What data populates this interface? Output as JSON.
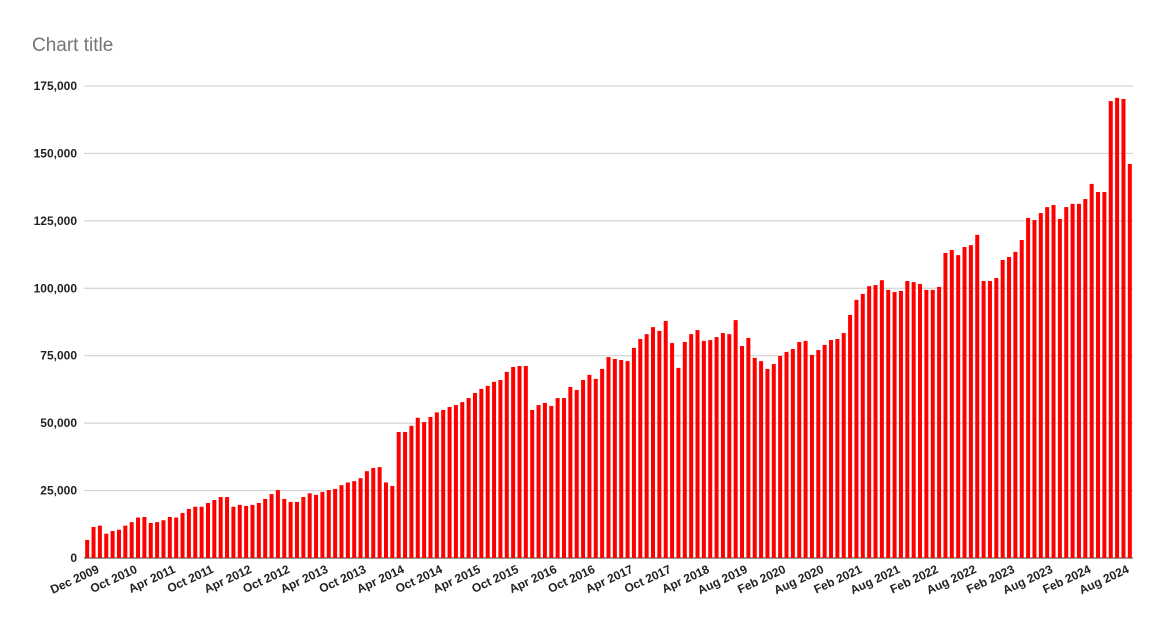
{
  "chart_data": {
    "type": "bar",
    "title": "Chart title",
    "color": "#ff0000",
    "grid": true,
    "ylim": [
      0,
      175000
    ],
    "yticks": [
      0,
      {
        "value": 25000,
        "label": "25,000"
      },
      {
        "value": 50000,
        "label": "50,000"
      },
      {
        "value": 75000,
        "label": "75,000"
      },
      {
        "value": 100000,
        "label": "100,000"
      },
      {
        "value": 125000,
        "label": "125,000"
      },
      {
        "value": 150000,
        "label": "150,000"
      },
      {
        "value": 175000,
        "label": "175,000"
      }
    ],
    "categories": [
      null,
      null,
      "Dec 2009",
      null,
      null,
      null,
      null,
      null,
      "Oct 2010",
      null,
      null,
      null,
      null,
      null,
      "Apr 2011",
      null,
      null,
      null,
      null,
      null,
      "Oct 2011",
      null,
      null,
      null,
      null,
      null,
      "Apr 2012",
      null,
      null,
      null,
      null,
      null,
      "Oct 2012",
      null,
      null,
      null,
      null,
      null,
      "Apr 2013",
      null,
      null,
      null,
      null,
      null,
      "Oct 2013",
      null,
      null,
      null,
      null,
      null,
      "Apr 2014",
      null,
      null,
      null,
      null,
      null,
      "Oct 2014",
      null,
      null,
      null,
      null,
      null,
      "Apr 2015",
      null,
      null,
      null,
      null,
      null,
      "Oct 2015",
      null,
      null,
      null,
      null,
      null,
      "Apr 2016",
      null,
      null,
      null,
      null,
      null,
      "Oct 2016",
      null,
      null,
      null,
      null,
      null,
      "Apr 2017",
      null,
      null,
      null,
      null,
      null,
      "Oct 2017",
      null,
      null,
      null,
      null,
      null,
      "Apr 2018",
      null,
      null,
      null,
      null,
      null,
      "Aug 2019",
      null,
      null,
      null,
      null,
      null,
      "Feb 2020",
      null,
      null,
      null,
      null,
      null,
      "Aug 2020",
      null,
      null,
      null,
      null,
      null,
      "Feb 2021",
      null,
      null,
      null,
      null,
      null,
      "Aug 2021",
      null,
      null,
      null,
      null,
      null,
      "Feb 2022",
      null,
      null,
      null,
      null,
      null,
      "Aug 2022",
      null,
      null,
      null,
      null,
      null,
      "Feb 2023",
      null,
      null,
      null,
      null,
      null,
      "Aug 2023",
      null,
      null,
      null,
      null,
      null,
      "Feb 2024",
      null,
      null,
      null,
      null,
      null,
      "Aug 2024"
    ],
    "values": [
      6700,
      11500,
      12000,
      9000,
      10000,
      10500,
      12000,
      13300,
      15000,
      15200,
      13000,
      13300,
      14000,
      15200,
      15000,
      16700,
      18200,
      19000,
      19000,
      20400,
      21500,
      22600,
      22600,
      19000,
      19700,
      19300,
      19700,
      20400,
      21900,
      23700,
      25200,
      21900,
      20800,
      20800,
      22600,
      24000,
      23400,
      24500,
      25200,
      25600,
      27000,
      28000,
      28500,
      29600,
      32200,
      33400,
      33700,
      28000,
      26700,
      46700,
      46700,
      49000,
      52000,
      50400,
      52300,
      54000,
      54900,
      56000,
      56700,
      57800,
      59300,
      61200,
      62700,
      63800,
      65300,
      66000,
      69000,
      70800,
      71200,
      71200,
      54900,
      56700,
      57500,
      56400,
      59300,
      59300,
      63400,
      62300,
      66000,
      67900,
      66400,
      70100,
      74500,
      73800,
      73400,
      73000,
      77900,
      81200,
      83000,
      85600,
      84200,
      87900,
      79700,
      70500,
      80100,
      83000,
      84500,
      80500,
      80800,
      81900,
      83400,
      83000,
      88200,
      78600,
      81600,
      74200,
      73000,
      70100,
      71900,
      74900,
      76400,
      77500,
      80100,
      80500,
      75300,
      77100,
      79000,
      80800,
      81200,
      83400,
      90100,
      95700,
      97900,
      100800,
      101200,
      103000,
      99400,
      98600,
      99000,
      102700,
      102300,
      101600,
      99400,
      99400,
      100500,
      113100,
      114200,
      112300,
      115300,
      116000,
      119800,
      102700,
      102700,
      103800,
      110500,
      111600,
      113500,
      117900,
      126100,
      125300,
      127900,
      130100,
      130900,
      125700,
      130100,
      131300,
      131300,
      133100,
      138700,
      135700,
      135700,
      169400,
      170600,
      170200,
      146100
    ]
  }
}
